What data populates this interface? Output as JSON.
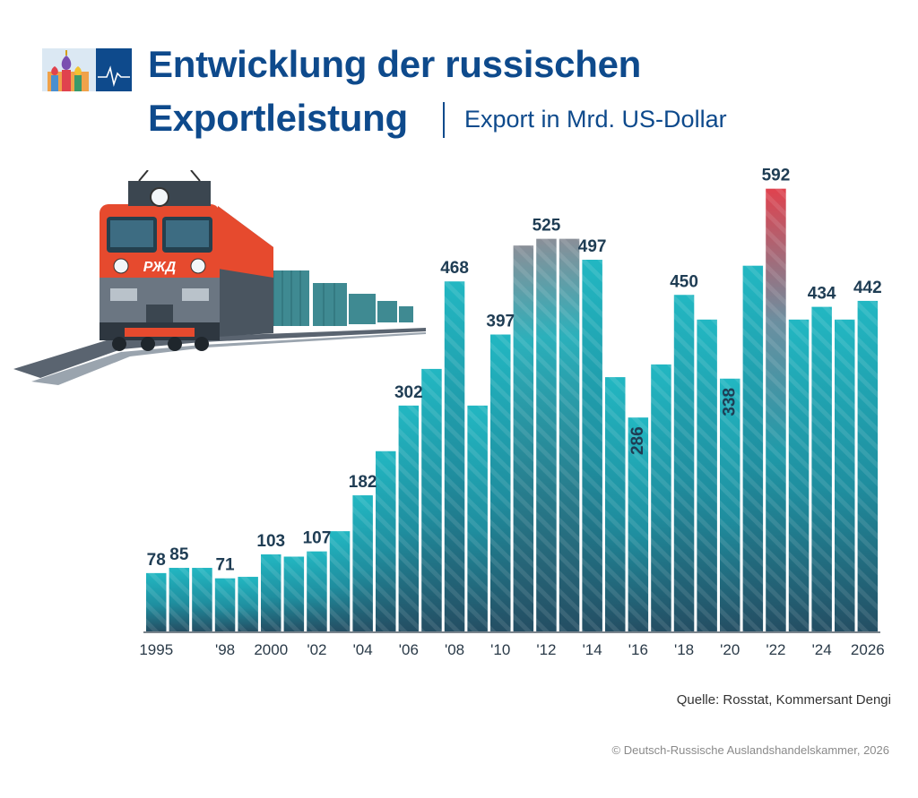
{
  "header": {
    "title_line1": "Entwicklung der russischen",
    "title_line2": "Exportleistung",
    "subtitle": "Export in Mrd. US-Dollar"
  },
  "footer": {
    "source": "Quelle: Rosstat, Kommersant Dengi",
    "copyright": "© Deutsch-Russische Auslandshandelskammer, 2026"
  },
  "train": {
    "logo_text": "РЖД"
  },
  "colors": {
    "title": "#0e4a8c",
    "bar_top": "#22b7c2",
    "bar_bottom": "#244e63",
    "highlight_top": "#e0424e",
    "label": "#1f3d54"
  },
  "chart_data": {
    "type": "bar",
    "title": "Entwicklung der russischen Exportleistung",
    "subtitle": "Export in Mrd. US-Dollar",
    "unit": "Mrd. US-Dollar",
    "ylim": [
      0,
      600
    ],
    "grid": false,
    "categories": [
      "1995",
      "1996",
      "1997",
      "1998",
      "1999",
      "2000",
      "2001",
      "2002",
      "2003",
      "2004",
      "2005",
      "2006",
      "2007",
      "2008",
      "2009",
      "2010",
      "2011",
      "2012",
      "2013",
      "2014",
      "2015",
      "2016",
      "2017",
      "2018",
      "2019",
      "2020",
      "2021",
      "2022",
      "2023",
      "2024",
      "2025",
      "2026"
    ],
    "tick_labels": [
      "1995",
      "",
      "",
      "'98",
      "",
      "2000",
      "",
      "'02",
      "",
      "'04",
      "",
      "'06",
      "",
      "'08",
      "",
      "'10",
      "",
      "'12",
      "",
      "'14",
      "",
      "'16",
      "",
      "'18",
      "",
      "'20",
      "",
      "'22",
      "",
      "'24",
      "",
      "2026"
    ],
    "values": [
      78,
      85,
      85,
      71,
      73,
      103,
      100,
      107,
      134,
      182,
      241,
      302,
      351,
      468,
      302,
      397,
      516,
      525,
      525,
      497,
      340,
      286,
      357,
      450,
      417,
      338,
      489,
      592,
      417,
      434,
      417,
      442
    ],
    "data_labels": [
      {
        "index": 0,
        "text": "78"
      },
      {
        "index": 1,
        "text": "85"
      },
      {
        "index": 3,
        "text": "71"
      },
      {
        "index": 5,
        "text": "103"
      },
      {
        "index": 7,
        "text": "107"
      },
      {
        "index": 9,
        "text": "182"
      },
      {
        "index": 11,
        "text": "302"
      },
      {
        "index": 13,
        "text": "468"
      },
      {
        "index": 15,
        "text": "397"
      },
      {
        "index": 17,
        "text": "525"
      },
      {
        "index": 19,
        "text": "497"
      },
      {
        "index": 21,
        "text": "286"
      },
      {
        "index": 23,
        "text": "450"
      },
      {
        "index": 25,
        "text": "338"
      },
      {
        "index": 27,
        "text": "592"
      },
      {
        "index": 29,
        "text": "434"
      },
      {
        "index": 31,
        "text": "442"
      }
    ],
    "vertical_labels": [
      21,
      25
    ],
    "highlight_index": 27,
    "muted_indices": [
      16,
      17,
      18
    ]
  }
}
